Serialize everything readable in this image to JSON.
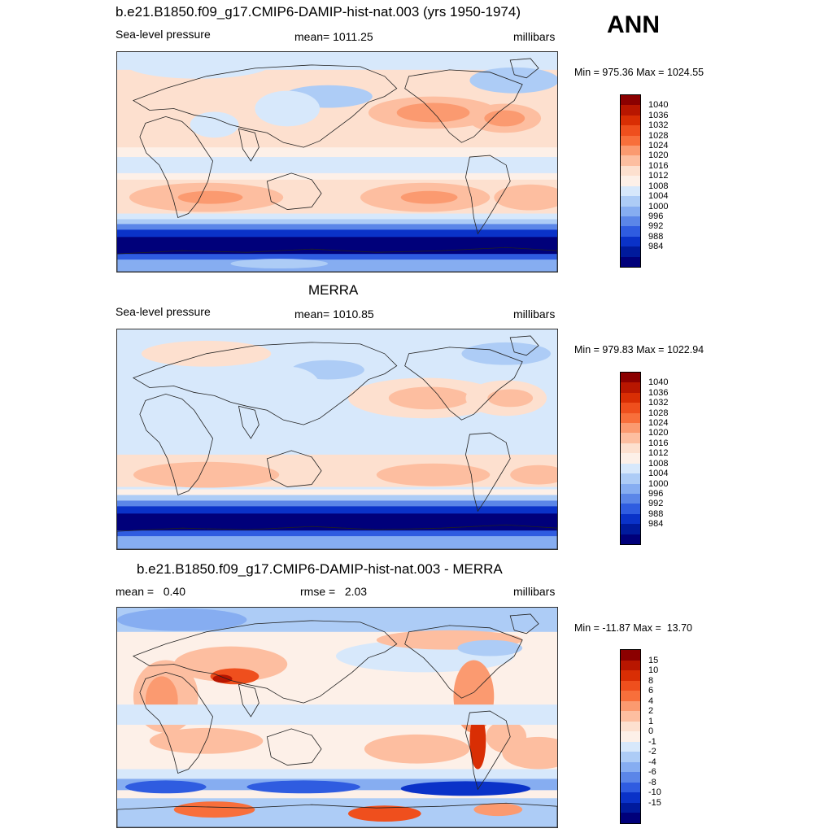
{
  "season": "ANN",
  "panels": [
    {
      "title": "b.e21.B1850.f09_g17.CMIP6-DAMIP-hist-nat.003 (yrs 1950-1974)",
      "left_label": "Sea-level pressure",
      "center_label": "mean= 1011.25",
      "right_label": "millibars",
      "minmax": "Min = 975.36 Max = 1024.55",
      "colorbar": {
        "levels": [
          "1040",
          "1036",
          "1032",
          "1028",
          "1024",
          "1020",
          "1016",
          "1012",
          "1008",
          "1004",
          "1000",
          "996",
          "992",
          "988",
          "984"
        ],
        "colors": [
          "#8b0000",
          "#b81600",
          "#d92e04",
          "#ef4f1d",
          "#f86f3b",
          "#fb9a70",
          "#fdbea0",
          "#fde0cf",
          "#fdf0e8",
          "#d7e8fb",
          "#adccf6",
          "#86adf1",
          "#5b86e8",
          "#2f5ce0",
          "#0a32c8",
          "#001a9c",
          "#00007a"
        ]
      },
      "map_style": "model"
    },
    {
      "title": "MERRA",
      "left_label": "Sea-level pressure",
      "center_label": "mean= 1010.85",
      "right_label": "millibars",
      "minmax": "Min = 979.83 Max = 1022.94",
      "colorbar": {
        "levels": [
          "1040",
          "1036",
          "1032",
          "1028",
          "1024",
          "1020",
          "1016",
          "1012",
          "1008",
          "1004",
          "1000",
          "996",
          "992",
          "988",
          "984"
        ],
        "colors": [
          "#8b0000",
          "#b81600",
          "#d92e04",
          "#ef4f1d",
          "#f86f3b",
          "#fb9a70",
          "#fdbea0",
          "#fde0cf",
          "#fdf0e8",
          "#d7e8fb",
          "#adccf6",
          "#86adf1",
          "#5b86e8",
          "#2f5ce0",
          "#0a32c8",
          "#001a9c",
          "#00007a"
        ]
      },
      "map_style": "obs"
    },
    {
      "title": "b.e21.B1850.f09_g17.CMIP6-DAMIP-hist-nat.003 - MERRA",
      "left_label": "mean =   0.40",
      "center_label": "rmse =   2.03",
      "right_label": "millibars",
      "minmax": "Min = -11.87 Max =  13.70",
      "colorbar": {
        "levels": [
          "15",
          "10",
          "8",
          "6",
          "4",
          "2",
          "1",
          "0",
          "-1",
          "-2",
          "-4",
          "-6",
          "-8",
          "-10",
          "-15"
        ],
        "colors": [
          "#8b0000",
          "#b81600",
          "#d92e04",
          "#ef4f1d",
          "#f86f3b",
          "#fb9a70",
          "#fdbea0",
          "#fde0cf",
          "#fdf0e8",
          "#d7e8fb",
          "#adccf6",
          "#86adf1",
          "#5b86e8",
          "#2f5ce0",
          "#0a32c8",
          "#001a9c",
          "#00007a"
        ]
      },
      "map_style": "diff"
    }
  ]
}
